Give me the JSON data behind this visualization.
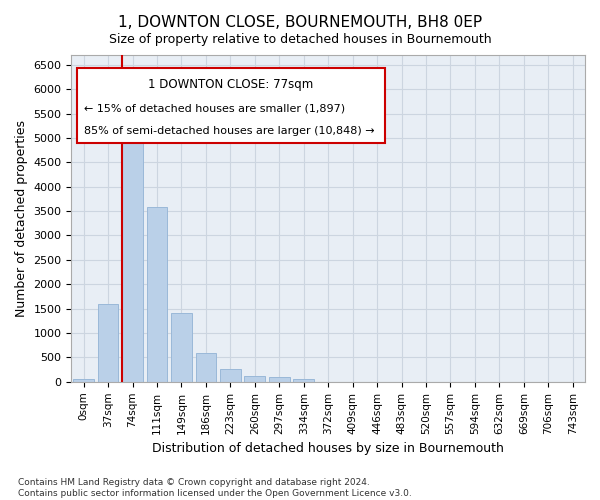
{
  "title": "1, DOWNTON CLOSE, BOURNEMOUTH, BH8 0EP",
  "subtitle": "Size of property relative to detached houses in Bournemouth",
  "xlabel": "Distribution of detached houses by size in Bournemouth",
  "ylabel": "Number of detached properties",
  "footer_line1": "Contains HM Land Registry data © Crown copyright and database right 2024.",
  "footer_line2": "Contains public sector information licensed under the Open Government Licence v3.0.",
  "bar_labels": [
    "0sqm",
    "37sqm",
    "74sqm",
    "111sqm",
    "149sqm",
    "186sqm",
    "223sqm",
    "260sqm",
    "297sqm",
    "334sqm",
    "372sqm",
    "409sqm",
    "446sqm",
    "483sqm",
    "520sqm",
    "557sqm",
    "594sqm",
    "632sqm",
    "669sqm",
    "706sqm",
    "743sqm"
  ],
  "bar_values": [
    50,
    1600,
    5100,
    3580,
    1420,
    600,
    265,
    115,
    100,
    65,
    5,
    5,
    5,
    0,
    0,
    0,
    0,
    0,
    0,
    0,
    0
  ],
  "bar_color": "#bad0e8",
  "bar_edge_color": "#9ab8d8",
  "grid_color": "#ccd5e0",
  "bg_color": "#e8eef5",
  "annotation_box_color": "#cc0000",
  "property_line_color": "#cc0000",
  "annotation_text_line1": "1 DOWNTON CLOSE: 77sqm",
  "annotation_text_line2": "← 15% of detached houses are smaller (1,897)",
  "annotation_text_line3": "85% of semi-detached houses are larger (10,848) →",
  "ylim": [
    0,
    6700
  ],
  "yticks": [
    0,
    500,
    1000,
    1500,
    2000,
    2500,
    3000,
    3500,
    4000,
    4500,
    5000,
    5500,
    6000,
    6500
  ]
}
